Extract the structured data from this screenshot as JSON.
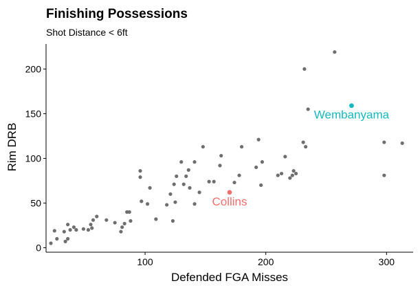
{
  "chart_data": {
    "type": "scatter",
    "title": "Finishing Possessions",
    "subtitle": "Shot Distance < 6ft",
    "xlabel": "Defended FGA Misses",
    "ylabel": "Rim DRB",
    "xlim": [
      18,
      322
    ],
    "ylim": [
      -5,
      228
    ],
    "x_ticks": [
      100,
      200,
      300
    ],
    "y_ticks": [
      0,
      50,
      100,
      150,
      200
    ],
    "grid": false,
    "legend": "none",
    "point_color": "#6e6e6e",
    "points": [
      {
        "x": 22,
        "y": 5
      },
      {
        "x": 25,
        "y": 19
      },
      {
        "x": 27,
        "y": 10
      },
      {
        "x": 33,
        "y": 18
      },
      {
        "x": 34,
        "y": 7
      },
      {
        "x": 36,
        "y": 10
      },
      {
        "x": 36,
        "y": 26
      },
      {
        "x": 38,
        "y": 20
      },
      {
        "x": 41,
        "y": 23
      },
      {
        "x": 43,
        "y": 20
      },
      {
        "x": 49,
        "y": 21
      },
      {
        "x": 53,
        "y": 20
      },
      {
        "x": 55,
        "y": 26
      },
      {
        "x": 56,
        "y": 22
      },
      {
        "x": 57,
        "y": 31
      },
      {
        "x": 60,
        "y": 35
      },
      {
        "x": 68,
        "y": 31
      },
      {
        "x": 75,
        "y": 28
      },
      {
        "x": 80,
        "y": 18
      },
      {
        "x": 81,
        "y": 23
      },
      {
        "x": 83,
        "y": 27
      },
      {
        "x": 85,
        "y": 40
      },
      {
        "x": 87,
        "y": 40
      },
      {
        "x": 88,
        "y": 30
      },
      {
        "x": 96,
        "y": 86
      },
      {
        "x": 96,
        "y": 79
      },
      {
        "x": 97,
        "y": 52
      },
      {
        "x": 102,
        "y": 49
      },
      {
        "x": 104,
        "y": 67
      },
      {
        "x": 109,
        "y": 32
      },
      {
        "x": 118,
        "y": 48
      },
      {
        "x": 121,
        "y": 60
      },
      {
        "x": 123,
        "y": 30
      },
      {
        "x": 124,
        "y": 71
      },
      {
        "x": 125,
        "y": 51
      },
      {
        "x": 126,
        "y": 80
      },
      {
        "x": 130,
        "y": 96
      },
      {
        "x": 132,
        "y": 71
      },
      {
        "x": 134,
        "y": 80
      },
      {
        "x": 136,
        "y": 87
      },
      {
        "x": 137,
        "y": 67
      },
      {
        "x": 141,
        "y": 96
      },
      {
        "x": 141,
        "y": 49
      },
      {
        "x": 145,
        "y": 62
      },
      {
        "x": 148,
        "y": 113
      },
      {
        "x": 153,
        "y": 74
      },
      {
        "x": 157,
        "y": 74
      },
      {
        "x": 162,
        "y": 92
      },
      {
        "x": 163,
        "y": 103
      },
      {
        "x": 174,
        "y": 73
      },
      {
        "x": 178,
        "y": 81
      },
      {
        "x": 180,
        "y": 113
      },
      {
        "x": 192,
        "y": 90
      },
      {
        "x": 194,
        "y": 121
      },
      {
        "x": 196,
        "y": 70
      },
      {
        "x": 197,
        "y": 96
      },
      {
        "x": 210,
        "y": 81
      },
      {
        "x": 213,
        "y": 83
      },
      {
        "x": 216,
        "y": 102
      },
      {
        "x": 220,
        "y": 78
      },
      {
        "x": 222,
        "y": 81
      },
      {
        "x": 223,
        "y": 86
      },
      {
        "x": 225,
        "y": 83
      },
      {
        "x": 231,
        "y": 118
      },
      {
        "x": 232,
        "y": 200
      },
      {
        "x": 233,
        "y": 113
      },
      {
        "x": 235,
        "y": 155
      },
      {
        "x": 257,
        "y": 219
      },
      {
        "x": 298,
        "y": 118
      },
      {
        "x": 298,
        "y": 81
      },
      {
        "x": 313,
        "y": 117
      }
    ],
    "annotations": [
      {
        "label": "Wembanyama",
        "x": 271,
        "y": 159,
        "color": "#16b8bf"
      },
      {
        "label": "Collins",
        "x": 170,
        "y": 62,
        "color": "#f26f6d"
      }
    ]
  }
}
